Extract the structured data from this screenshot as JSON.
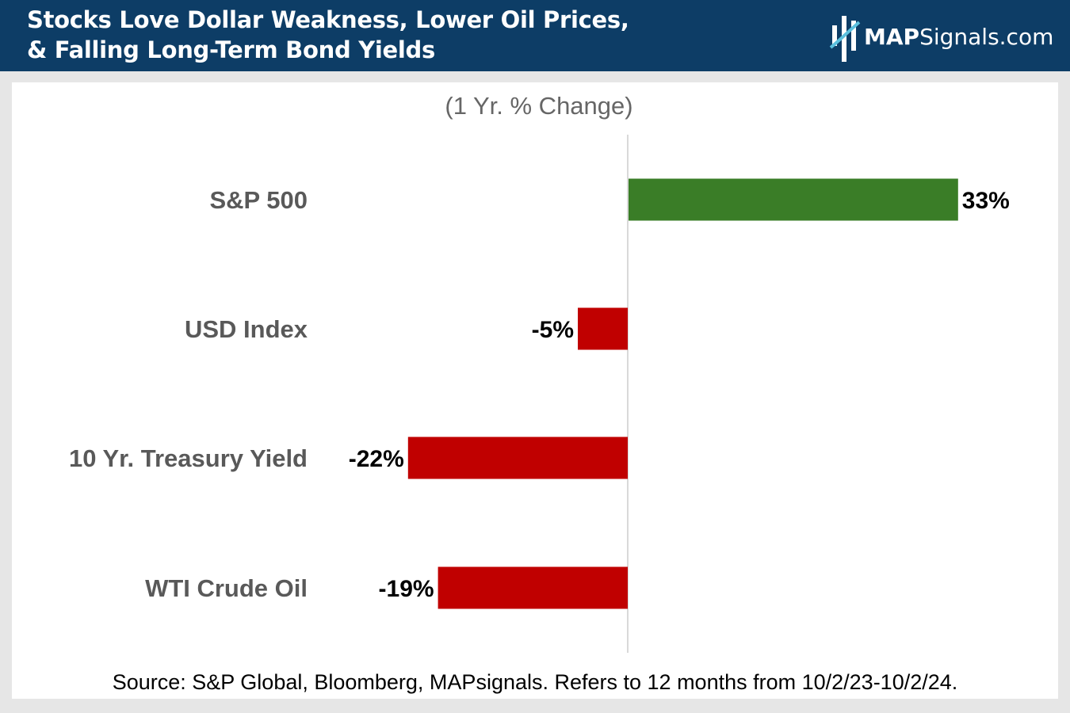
{
  "header": {
    "title_line1": "Stocks Love Dollar Weakness, Lower Oil Prices,",
    "title_line2": "& Falling Long-Term Bond Yields",
    "logo_strong": "MAP",
    "logo_rest": "Signals.com"
  },
  "chart_data": {
    "type": "bar",
    "orientation": "horizontal",
    "subtitle": "(1 Yr. % Change)",
    "categories": [
      "S&P 500",
      "USD Index",
      "10 Yr. Treasury Yield",
      "WTI Crude Oil"
    ],
    "values": [
      33,
      -5,
      -22,
      -19
    ],
    "value_labels": [
      "33%",
      "-5%",
      "-22%",
      "-19%"
    ],
    "colors": {
      "positive": "#3a7d27",
      "negative": "#c00000",
      "axis": "#d9d9d9"
    },
    "grid": false,
    "legend": "none"
  },
  "footer": {
    "source": "Source: S&P Global, Bloomberg, MAPsignals. Refers to 12 months from 10/2/23-10/2/24."
  }
}
